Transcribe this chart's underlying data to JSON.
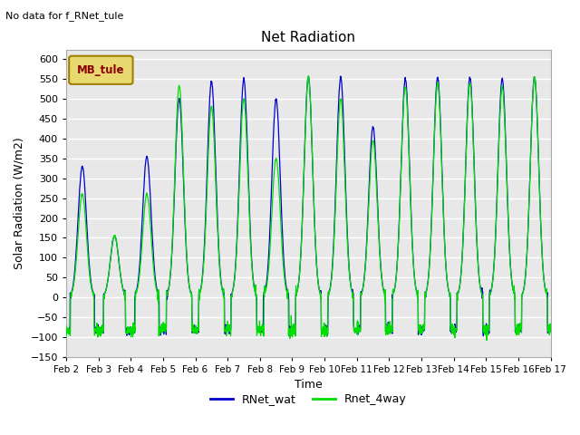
{
  "title": "Net Radiation",
  "xlabel": "Time",
  "ylabel": "Solar Radiation (W/m2)",
  "top_left_text": "No data for f_RNet_tule",
  "legend_box_text": "MB_tule",
  "legend_box_facecolor": "#e8d870",
  "legend_box_edgecolor": "#a08000",
  "legend_box_text_color": "#8b0000",
  "ylim": [
    -150,
    625
  ],
  "yticks": [
    -150,
    -100,
    -50,
    0,
    50,
    100,
    150,
    200,
    250,
    300,
    350,
    400,
    450,
    500,
    550,
    600
  ],
  "line1_color": "#0000cd",
  "line2_color": "#00dd00",
  "line1_label": "RNet_wat",
  "line2_label": "Rnet_4way",
  "background_color": "#e8e8e8",
  "grid_color": "white",
  "n_days": 15,
  "xtick_labels": [
    "Feb 2",
    "Feb 3",
    "Feb 4",
    "Feb 5",
    "Feb 6",
    "Feb 7",
    "Feb 8",
    "Feb 9",
    "Feb 10",
    "Feb 11",
    "Feb 12",
    "Feb 13",
    "Feb 14",
    "Feb 15",
    "Feb 16",
    "Feb 17"
  ]
}
